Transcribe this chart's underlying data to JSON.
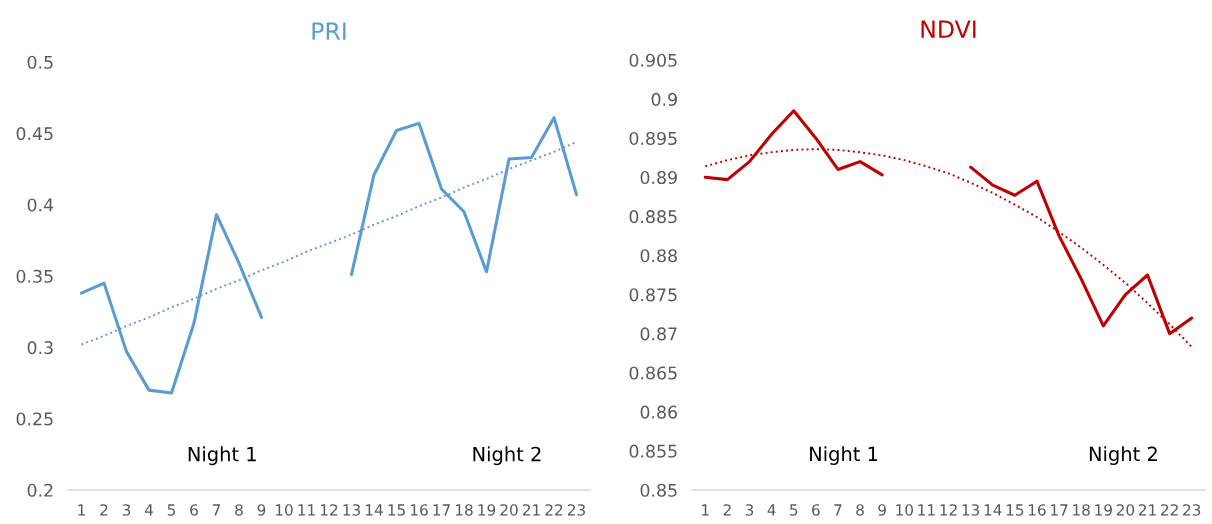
{
  "chart_data": [
    {
      "type": "line",
      "title": "PRI",
      "categories": [
        "1",
        "2",
        "3",
        "4",
        "5",
        "6",
        "7",
        "8",
        "9",
        "10",
        "11",
        "12",
        "13",
        "14",
        "15",
        "16",
        "17",
        "18",
        "19",
        "20",
        "21",
        "22",
        "23"
      ],
      "series": [
        {
          "color": "#5b9bd5",
          "line_style": "solid",
          "values": [
            0.338,
            0.345,
            0.297,
            0.27,
            0.268,
            0.317,
            0.393,
            0.359,
            0.321,
            null,
            null,
            null,
            0.351,
            0.421,
            0.452,
            0.457,
            0.411,
            0.395,
            0.353,
            0.432,
            0.433,
            0.461,
            0.407
          ]
        },
        {
          "color": "#5b9bd5",
          "line_style": "dotted",
          "values": [
            0.302,
            0.308,
            0.315,
            0.321,
            0.328,
            0.334,
            0.341,
            0.347,
            0.354,
            0.36,
            0.367,
            0.373,
            0.379,
            0.386,
            0.392,
            0.399,
            0.405,
            0.412,
            0.418,
            0.425,
            0.431,
            0.437,
            0.444
          ]
        }
      ],
      "ylim": [
        0.2,
        0.5
      ],
      "yticks": [
        0.2,
        0.25,
        0.3,
        0.35,
        0.4,
        0.45,
        0.5
      ],
      "grid": false,
      "legend": false,
      "marker": "none",
      "annotations": [
        "Night 1",
        "Night 2"
      ]
    },
    {
      "type": "line",
      "title": "NDVI",
      "categories": [
        "1",
        "2",
        "3",
        "4",
        "5",
        "6",
        "7",
        "8",
        "9",
        "10",
        "11",
        "12",
        "13",
        "14",
        "15",
        "16",
        "17",
        "18",
        "19",
        "20",
        "21",
        "22",
        "23"
      ],
      "series": [
        {
          "color": "#c00000",
          "line_style": "solid",
          "values": [
            0.89,
            0.8897,
            0.892,
            0.8955,
            0.8985,
            0.895,
            0.891,
            0.892,
            0.8903,
            null,
            null,
            null,
            0.8913,
            0.889,
            0.8877,
            0.8895,
            0.8825,
            0.877,
            0.871,
            0.875,
            0.8775,
            0.87,
            0.872
          ]
        },
        {
          "color": "#c00000",
          "line_style": "dotted",
          "values": [
            0.8914,
            0.8922,
            0.8928,
            0.8932,
            0.8935,
            0.8936,
            0.8935,
            0.8932,
            0.8928,
            0.8922,
            0.8914,
            0.8905,
            0.8893,
            0.888,
            0.8865,
            0.8849,
            0.883,
            0.881,
            0.8788,
            0.8765,
            0.8739,
            0.8712,
            0.8683
          ]
        }
      ],
      "ylim": [
        0.85,
        0.905
      ],
      "yticks": [
        0.85,
        0.855,
        0.86,
        0.865,
        0.87,
        0.875,
        0.88,
        0.885,
        0.89,
        0.895,
        0.9,
        0.905
      ],
      "grid": false,
      "legend": false,
      "marker": "none",
      "annotations": [
        "Night 1",
        "Night 2"
      ]
    }
  ]
}
